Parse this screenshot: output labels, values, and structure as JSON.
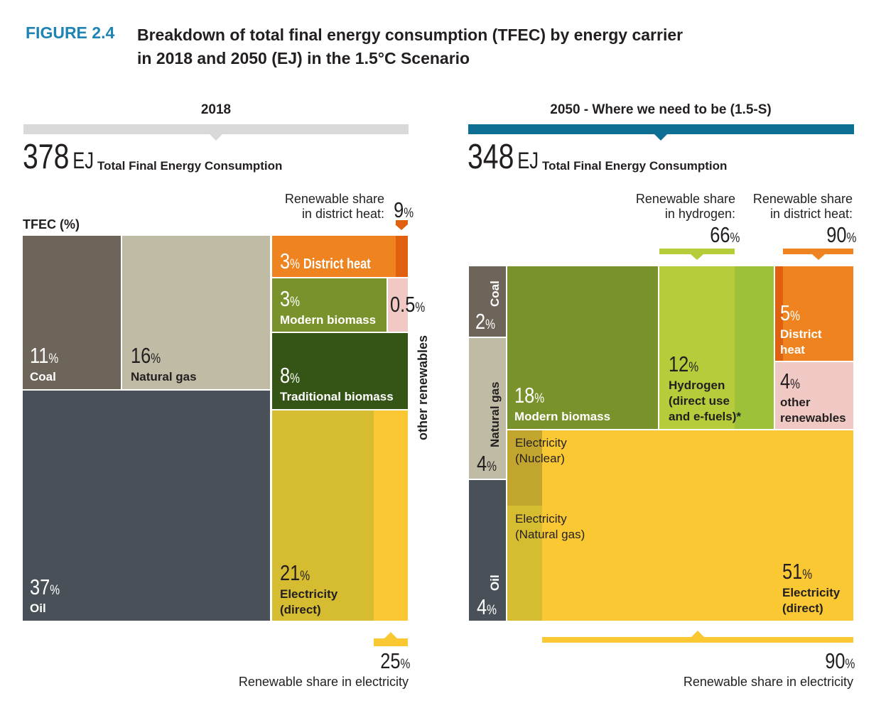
{
  "header": {
    "figure": "FIGURE 2.4",
    "title": "Breakdown of total final energy consumption (TFEC) by energy carrier\nin 2018 and 2050 (EJ) in the 1.5°C Scenario"
  },
  "chart_data": [
    {
      "type": "treemap",
      "title": "2018",
      "header_color": "#d9d9d9",
      "total": 378,
      "total_unit": "EJ",
      "total_label": "Total Final Energy Consumption",
      "axis_label": "TFEC (%)",
      "unit": "%",
      "categories": [
        "Coal",
        "Natural gas",
        "Oil",
        "District heat",
        "Modern biomass",
        "other renewables",
        "Traditional biomass",
        "Electricity\n(direct)"
      ],
      "values": [
        11,
        16,
        37,
        3,
        3,
        0.5,
        8,
        21
      ],
      "colors": [
        "#6d645a",
        "#bfbba5",
        "#4a5058",
        "#ee8320",
        "#7a922b",
        "#f0c9c4",
        "#355516",
        "#d6bc30"
      ],
      "renewable_shares": [
        {
          "label": "Renewable share\nin district heat:",
          "value": 9,
          "color": "#e0600f"
        },
        {
          "label": "Renewable share in electricity",
          "value": 25,
          "color": "#fac832"
        }
      ]
    },
    {
      "type": "treemap",
      "title": "2050  -  Where we need to be (1.5-S)",
      "header_color": "#0d6f94",
      "total": 348,
      "total_unit": "EJ",
      "total_label": "Total Final Energy Consumption",
      "unit": "%",
      "categories": [
        "Coal",
        "Natural gas",
        "Oil",
        "Modern biomass",
        "Hydrogen\n(direct use\nand e-fuels)*",
        "District\nheat",
        "other\nrenewables",
        "Electricity\n(direct)"
      ],
      "values": [
        2,
        4,
        4,
        18,
        12,
        5,
        4,
        51
      ],
      "colors": [
        "#6d645a",
        "#bfbba5",
        "#4a5058",
        "#7a922b",
        "#9dc23a",
        "#e0600f",
        "#f0c9c4",
        "#d6bc30"
      ],
      "sub_labels": [
        "Electricity\n(Nuclear)",
        "Electricity\n(Natural gas)"
      ],
      "renewable_shares": [
        {
          "label": "Renewable share\nin hydrogen:",
          "value": 66,
          "color": "#b7cc3a"
        },
        {
          "label": "Renewable share\nin district heat:",
          "value": 90,
          "color": "#ee8320"
        },
        {
          "label": "Renewable share in electricity",
          "value": 90,
          "color": "#fac832"
        }
      ]
    }
  ]
}
